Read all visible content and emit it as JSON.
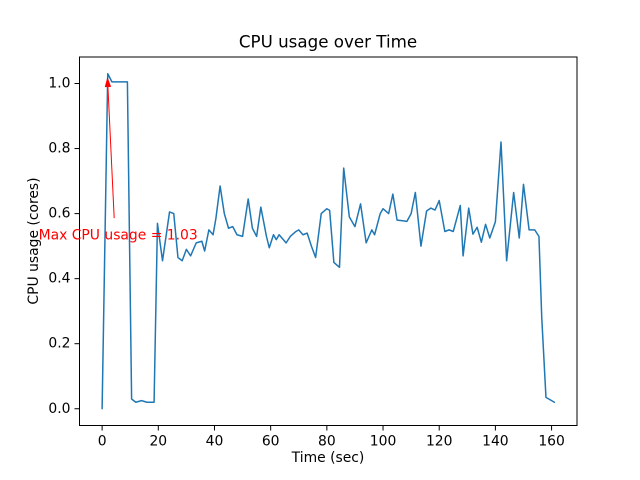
{
  "figure": {
    "background": "#ffffff",
    "spine_color": "#000000"
  },
  "chart_data": {
    "type": "line",
    "title": "CPU usage over Time",
    "xlabel": "Time (sec)",
    "ylabel": "CPU usage (cores)",
    "xlim": [
      -8.05,
      169.05
    ],
    "ylim": [
      -0.0515,
      1.0815
    ],
    "grid": false,
    "legend": null,
    "line_color": "#1f77b4",
    "line_width": 1.5,
    "xticks": {
      "values": [
        0,
        20,
        40,
        60,
        80,
        100,
        120,
        140,
        160
      ],
      "labels": [
        "0",
        "20",
        "40",
        "60",
        "80",
        "100",
        "120",
        "140",
        "160"
      ]
    },
    "yticks": {
      "values": [
        0.0,
        0.2,
        0.4,
        0.6,
        0.8,
        1.0
      ],
      "labels": [
        "0.0",
        "0.2",
        "0.4",
        "0.6",
        "0.8",
        "1.0"
      ]
    },
    "series": [
      {
        "name": "cpu_usage_cores",
        "x": [
          0,
          2,
          3.5,
          9,
          10.5,
          12,
          14,
          16,
          18.5,
          19.7,
          21.5,
          24,
          25.5,
          27,
          28.5,
          30,
          31.5,
          33.5,
          35.5,
          36.5,
          38,
          39.5,
          40.5,
          42,
          43.5,
          45,
          46.5,
          48,
          50,
          52,
          53.5,
          55,
          56.5,
          58.5,
          59.5,
          61,
          62,
          63,
          64,
          65.5,
          67,
          69,
          70,
          71.5,
          73,
          74.5,
          76,
          78,
          80,
          81,
          82.5,
          84.5,
          86,
          88,
          90,
          92,
          94,
          96,
          97,
          99,
          100,
          102,
          103.5,
          105,
          107,
          108.5,
          110,
          111.5,
          113.5,
          115.5,
          117,
          118.5,
          120,
          122,
          123.5,
          125,
          127.5,
          128.5,
          130.5,
          132,
          133.5,
          135,
          136.5,
          138,
          140,
          142,
          144,
          146.5,
          148.5,
          150,
          152,
          154,
          155.5,
          156.5,
          158,
          161
        ],
        "y": [
          0.0,
          1.03,
          1.005,
          1.005,
          0.03,
          0.02,
          0.025,
          0.02,
          0.02,
          0.57,
          0.455,
          0.605,
          0.6,
          0.465,
          0.455,
          0.49,
          0.47,
          0.51,
          0.515,
          0.485,
          0.55,
          0.535,
          0.585,
          0.685,
          0.6,
          0.555,
          0.56,
          0.535,
          0.53,
          0.645,
          0.555,
          0.53,
          0.62,
          0.53,
          0.495,
          0.535,
          0.52,
          0.535,
          0.525,
          0.51,
          0.53,
          0.545,
          0.55,
          0.535,
          0.54,
          0.5,
          0.465,
          0.6,
          0.615,
          0.61,
          0.45,
          0.435,
          0.74,
          0.59,
          0.56,
          0.63,
          0.51,
          0.55,
          0.535,
          0.6,
          0.615,
          0.6,
          0.66,
          0.58,
          0.578,
          0.576,
          0.6,
          0.665,
          0.5,
          0.608,
          0.617,
          0.611,
          0.64,
          0.545,
          0.55,
          0.545,
          0.625,
          0.47,
          0.617,
          0.537,
          0.558,
          0.512,
          0.567,
          0.525,
          0.575,
          0.82,
          0.455,
          0.665,
          0.525,
          0.69,
          0.55,
          0.55,
          0.53,
          0.28,
          0.035,
          0.02
        ]
      }
    ],
    "annotation": {
      "text": "Max CPU usage = 1.03",
      "color": "#ff0000",
      "text_xy": [
        -22.6,
        0.52
      ],
      "arrow_tail": [
        4.3,
        0.586
      ],
      "arrow_head": [
        1.9,
        1.02
      ]
    },
    "max_value": 1.03
  }
}
